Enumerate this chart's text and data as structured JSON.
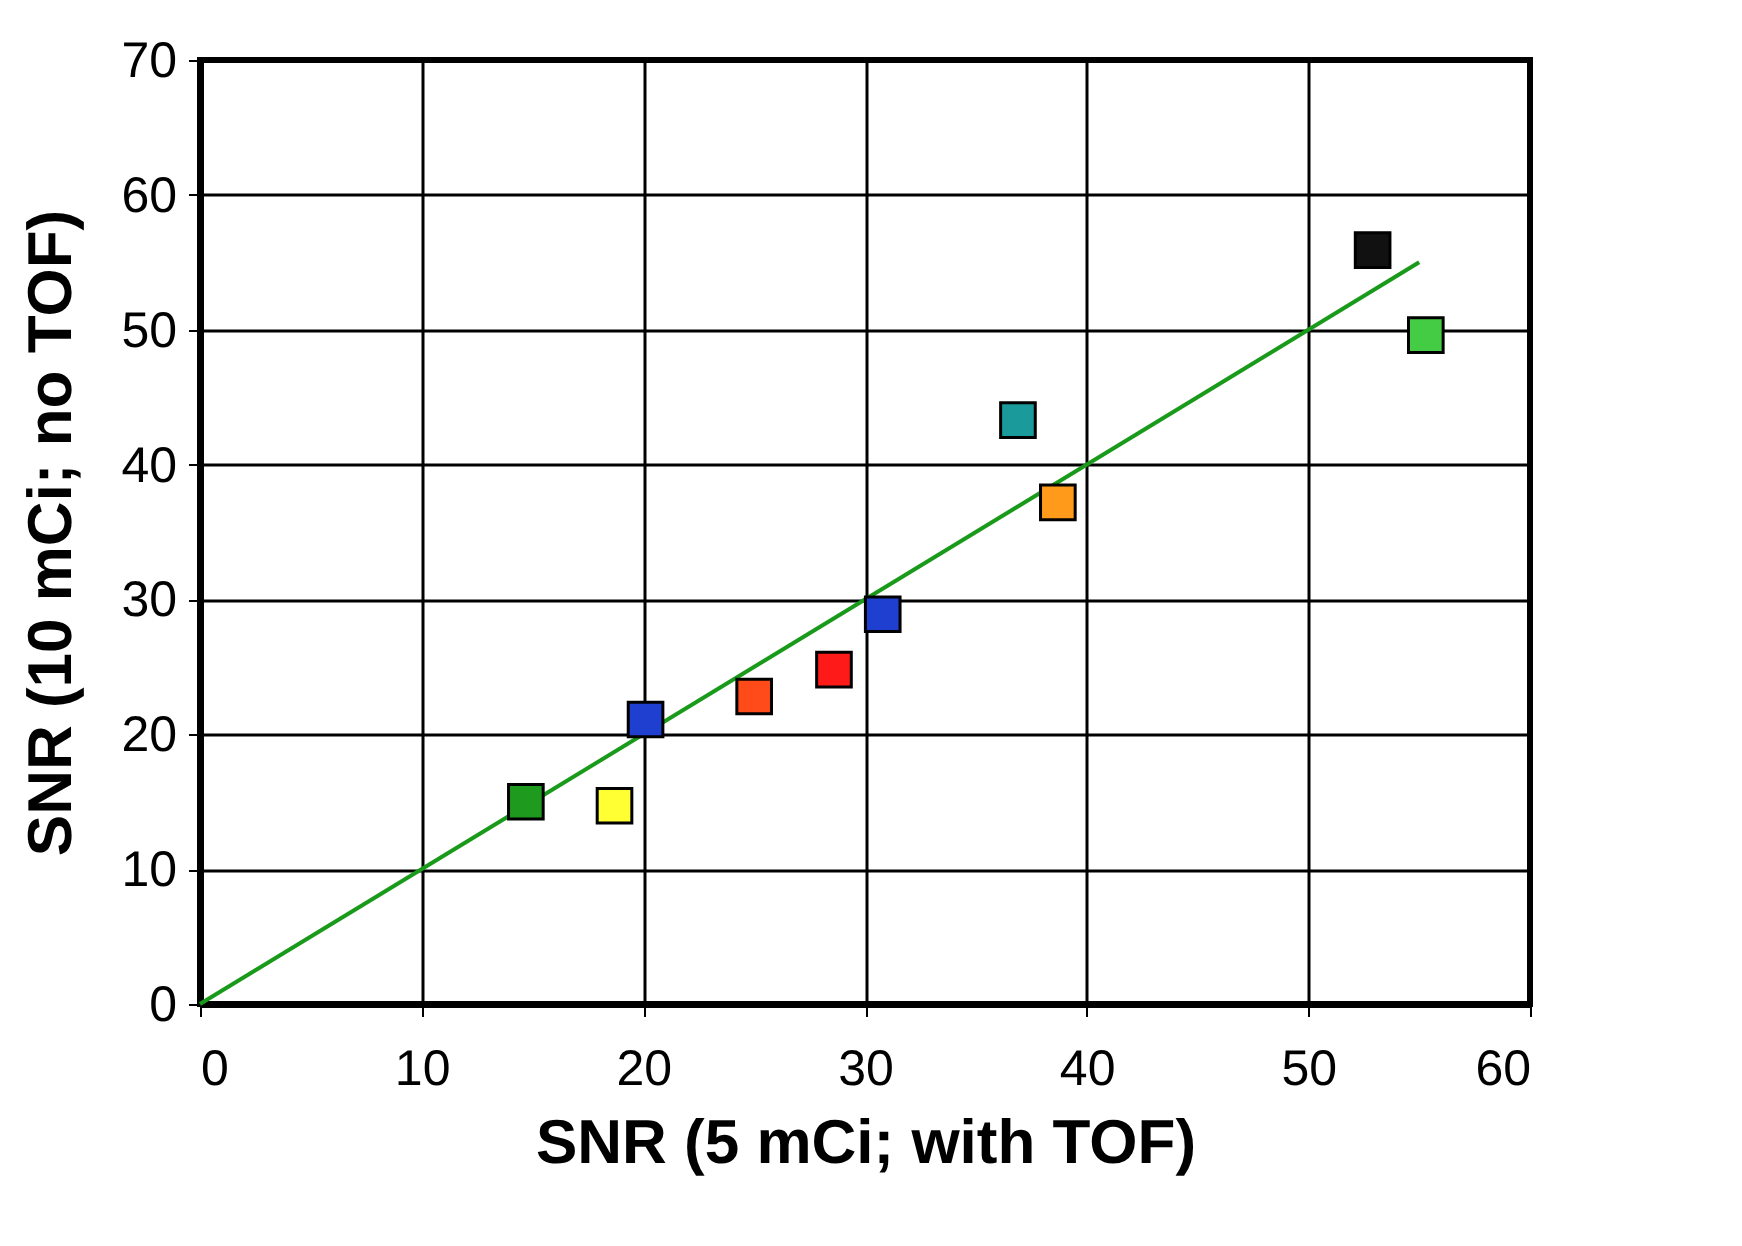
{
  "chart_data": {
    "type": "scatter",
    "xlabel": "SNR (5 mCi; with TOF)",
    "ylabel": "SNR (10 mCi; no TOF)",
    "xlim": [
      0,
      60
    ],
    "ylim": [
      0,
      70
    ],
    "xticks": [
      0,
      10,
      20,
      30,
      40,
      50,
      60
    ],
    "yticks": [
      0,
      10,
      20,
      30,
      40,
      50,
      60,
      70
    ],
    "grid": true,
    "marker": "square",
    "series": [
      {
        "type": "line",
        "marker": "none",
        "color": "#1a9a1a",
        "x": [
          0,
          55
        ],
        "values": [
          0,
          55
        ]
      },
      {
        "x": [
          14.7,
          18.7,
          20.1,
          25.0,
          28.6,
          30.8,
          36.9,
          38.7,
          52.9,
          55.3
        ],
        "values": [
          15.0,
          14.7,
          21.1,
          22.8,
          24.8,
          28.9,
          43.3,
          37.2,
          55.9,
          49.6
        ],
        "colors": [
          "#1e9a1e",
          "#ffff33",
          "#1f3fd0",
          "#ff4a1a",
          "#ff1a1a",
          "#1f3fd0",
          "#1a9a9a",
          "#ff9a1a",
          "#111111",
          "#44cc44"
        ]
      }
    ]
  }
}
